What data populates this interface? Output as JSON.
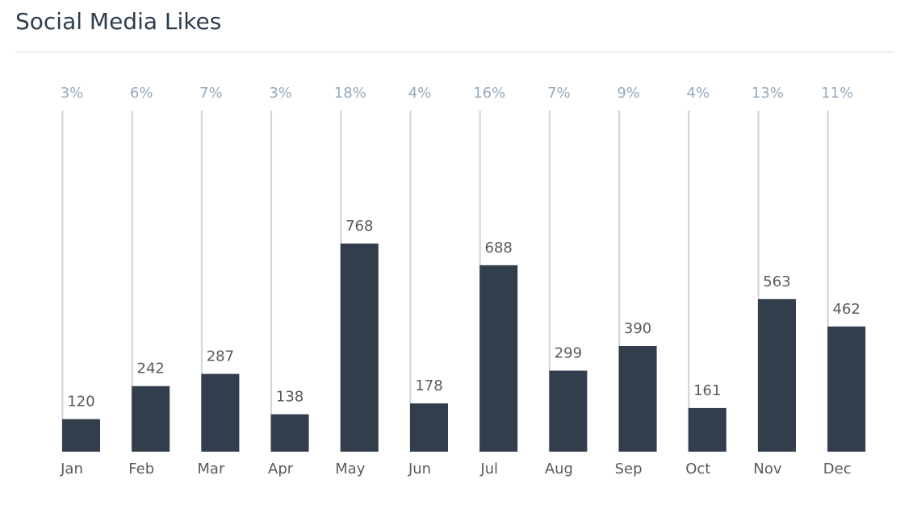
{
  "chart_data": {
    "type": "bar",
    "title": "Social Media Likes",
    "categories": [
      "Jan",
      "Feb",
      "Mar",
      "Apr",
      "May",
      "Jun",
      "Jul",
      "Aug",
      "Sep",
      "Oct",
      "Nov",
      "Dec"
    ],
    "values": [
      120,
      242,
      287,
      138,
      768,
      178,
      688,
      299,
      390,
      161,
      563,
      462
    ],
    "percent_labels": [
      "3%",
      "6%",
      "7%",
      "3%",
      "18%",
      "4%",
      "16%",
      "7%",
      "9%",
      "4%",
      "13%",
      "11%"
    ],
    "xlabel": "",
    "ylabel": "",
    "ylim": [
      0,
      1260
    ],
    "grid": false,
    "legend": "none"
  },
  "colors": {
    "bar": "#323e4b",
    "stem": "#c9d4de",
    "percent_text": "#95aabd",
    "value_text": "#5a5a5a",
    "title_text": "#2f3e4d",
    "rule": "#d8dde2"
  }
}
